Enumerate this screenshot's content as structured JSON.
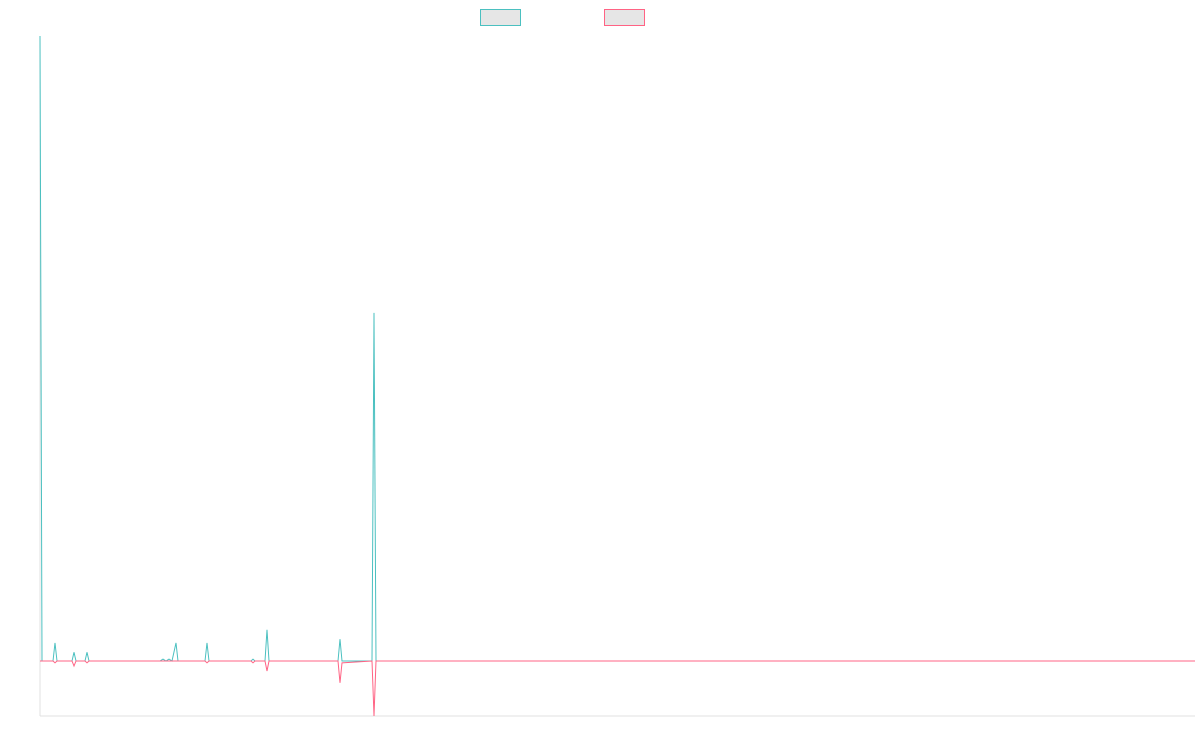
{
  "chart_data": {
    "type": "line",
    "xlim": [
      0,
      1155
    ],
    "ylim": [
      -8.8,
      100
    ],
    "series": [
      {
        "color": "#4bc0c0",
        "x": [
          0,
          2,
          13,
          15,
          17,
          32,
          34,
          36,
          45,
          47,
          49,
          120,
          123,
          126,
          129,
          132,
          136,
          138,
          165,
          167,
          169,
          211,
          213,
          215,
          225,
          227,
          229,
          298,
          300,
          302,
          332,
          334,
          336,
          1155
        ],
        "values": [
          100,
          0,
          0,
          2.9,
          0,
          0,
          1.4,
          0,
          0,
          1.4,
          0,
          0,
          0.3,
          0,
          0.3,
          0,
          2.9,
          0,
          0,
          2.9,
          0,
          0,
          0.3,
          0,
          0,
          5,
          0,
          0,
          3.5,
          0,
          0,
          55.7,
          0,
          0
        ]
      },
      {
        "color": "#ff6384",
        "x": [
          0,
          13,
          15,
          17,
          32,
          34,
          36,
          45,
          47,
          49,
          165,
          167,
          169,
          211,
          213,
          215,
          225,
          227,
          229,
          298,
          300,
          302,
          332,
          334,
          336,
          1155
        ],
        "values": [
          0,
          0,
          -0.3,
          0,
          0,
          -0.8,
          0,
          0,
          -0.3,
          0,
          0,
          -0.3,
          0,
          0,
          -0.3,
          0,
          0,
          -1.6,
          0,
          0,
          -3.5,
          -0.3,
          0,
          -8.8,
          0,
          0
        ]
      }
    ]
  }
}
